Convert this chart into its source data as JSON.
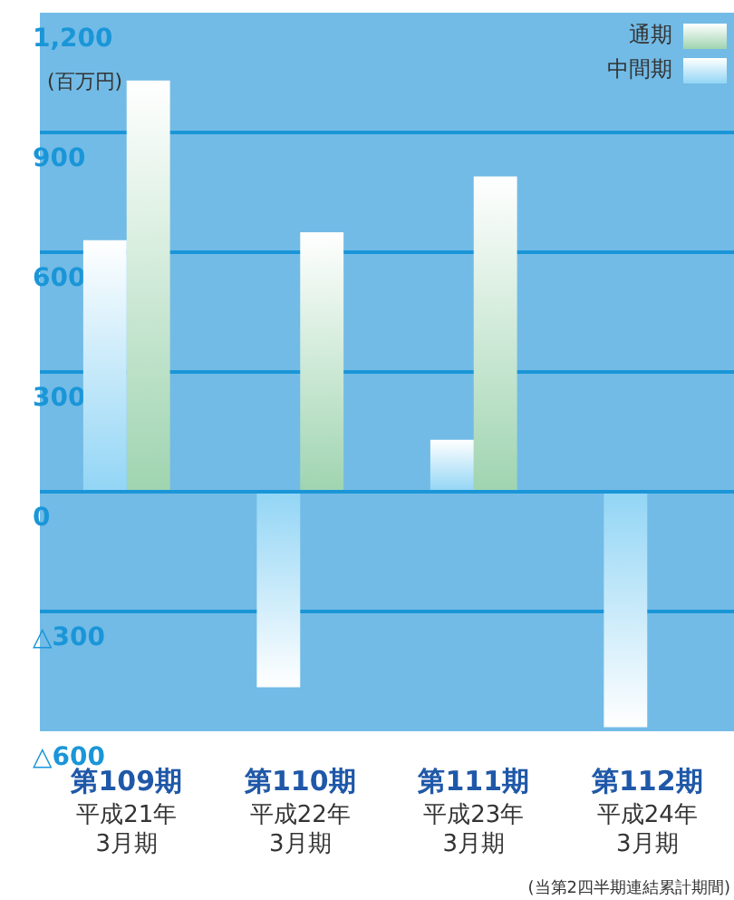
{
  "chart_data": {
    "type": "bar",
    "ylabel": "(百万円)",
    "categories": [
      "第109期平成21年3月期",
      "第110期平成22年3月期",
      "第111期平成23年3月期",
      "第112期平成24年3月期"
    ],
    "series": [
      {
        "name": "中間期",
        "color": "#92d5f5",
        "values": [
          630,
          -490,
          130,
          -590
        ]
      },
      {
        "name": "通期",
        "color": "#9fd4b0",
        "values": [
          1030,
          650,
          790,
          null
        ]
      }
    ],
    "ylim": [
      -600,
      1200
    ],
    "yticks": [
      {
        "value": -600,
        "label": "△600"
      },
      {
        "value": -300,
        "label": "△300"
      },
      0,
      300,
      600,
      900,
      {
        "value": 1200,
        "label": "1,200"
      }
    ],
    "grid": "y",
    "legend": "top right",
    "annotations": [
      "(当第2四半期連結累計期間)"
    ]
  }
}
